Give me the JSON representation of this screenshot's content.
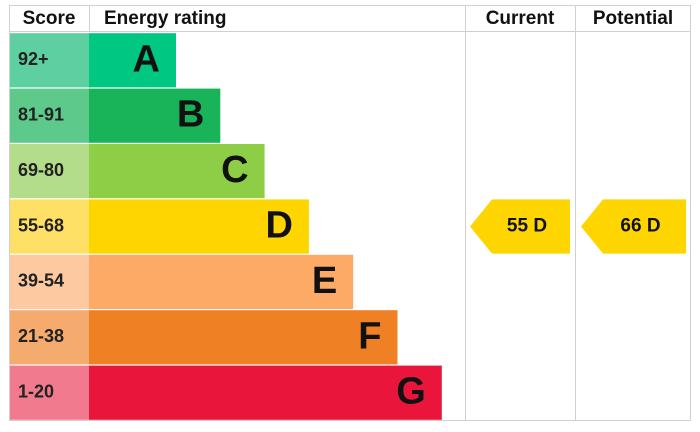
{
  "header": {
    "score": "Score",
    "rating": "Energy rating",
    "current": "Current",
    "potential": "Potential"
  },
  "bands": [
    {
      "score": "92+",
      "letter": "A",
      "color": "#00c781",
      "score_color": "#5ecfa0"
    },
    {
      "score": "81-91",
      "letter": "B",
      "color": "#19b459",
      "score_color": "#5dc98a"
    },
    {
      "score": "69-80",
      "letter": "C",
      "color": "#8dce46",
      "score_color": "#b3dd8a"
    },
    {
      "score": "55-68",
      "letter": "D",
      "color": "#ffd500",
      "score_color": "#ffe066"
    },
    {
      "score": "39-54",
      "letter": "E",
      "color": "#fcaa65",
      "score_color": "#fdc9a0"
    },
    {
      "score": "21-38",
      "letter": "F",
      "color": "#ef8023",
      "score_color": "#f5aa6e"
    },
    {
      "score": "1-20",
      "letter": "G",
      "color": "#e9153b",
      "score_color": "#f17a8e"
    }
  ],
  "current": {
    "score": 55,
    "band": "D"
  },
  "potential": {
    "score": 66,
    "band": "D"
  }
}
